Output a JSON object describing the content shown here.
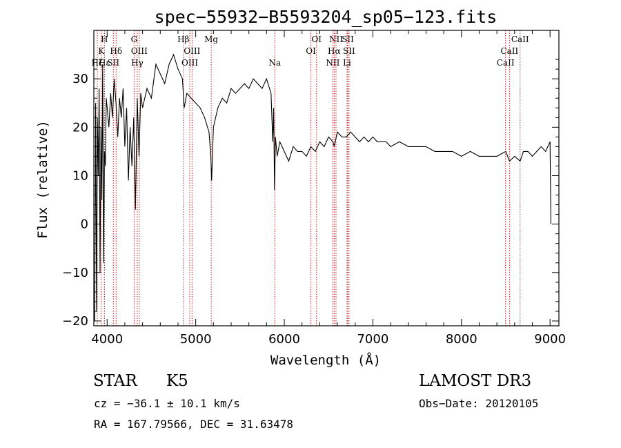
{
  "chart_data": {
    "type": "line",
    "title": "spec−55932−B5593204_sp05−123.fits",
    "xlabel": "Wavelength (Å)",
    "ylabel": "Flux (relative)",
    "xlim": [
      3850,
      9100
    ],
    "ylim": [
      -21,
      40
    ],
    "xticks": [
      4000,
      5000,
      6000,
      7000,
      8000,
      9000
    ],
    "xtick_labels": [
      "4000",
      "5000",
      "6000",
      "7000",
      "8000",
      "9000"
    ],
    "yticks": [
      -20,
      -10,
      0,
      10,
      20,
      30
    ],
    "ytick_labels": [
      "−20",
      "−10",
      "0",
      "10",
      "20",
      "30"
    ],
    "series": [
      {
        "name": "flux",
        "x": [
          3860,
          3870,
          3880,
          3890,
          3900,
          3910,
          3920,
          3930,
          3940,
          3950,
          3960,
          3970,
          3980,
          3990,
          4000,
          4020,
          4040,
          4060,
          4080,
          4100,
          4120,
          4140,
          4160,
          4180,
          4200,
          4220,
          4240,
          4260,
          4280,
          4300,
          4320,
          4340,
          4360,
          4380,
          4400,
          4450,
          4500,
          4550,
          4600,
          4650,
          4700,
          4750,
          4800,
          4850,
          4870,
          4900,
          4950,
          5000,
          5050,
          5100,
          5150,
          5170,
          5180,
          5200,
          5250,
          5300,
          5350,
          5400,
          5450,
          5500,
          5550,
          5600,
          5650,
          5700,
          5750,
          5800,
          5850,
          5870,
          5880,
          5890,
          5900,
          5920,
          5950,
          6000,
          6050,
          6100,
          6150,
          6200,
          6250,
          6300,
          6350,
          6400,
          6450,
          6500,
          6550,
          6563,
          6600,
          6650,
          6700,
          6750,
          6800,
          6850,
          6900,
          6950,
          7000,
          7050,
          7100,
          7150,
          7200,
          7300,
          7400,
          7500,
          7600,
          7700,
          7800,
          7900,
          8000,
          8100,
          8200,
          8300,
          8400,
          8500,
          8542,
          8600,
          8662,
          8700,
          8750,
          8800,
          8850,
          8900,
          8950,
          9000,
          9010
        ],
        "y": [
          -20,
          25,
          -18,
          22,
          10,
          28,
          -10,
          20,
          5,
          33,
          -8,
          15,
          12,
          26,
          24,
          20,
          27,
          22,
          30,
          25,
          18,
          26,
          22,
          28,
          16,
          24,
          9,
          20,
          12,
          22,
          3,
          26,
          14,
          27,
          24,
          28,
          26,
          33,
          31,
          29,
          33,
          35,
          32,
          30,
          24,
          27,
          26,
          25,
          24,
          22,
          19,
          14,
          9,
          20,
          24,
          26,
          25,
          28,
          27,
          28,
          29,
          28,
          30,
          29,
          28,
          30,
          27,
          17,
          24,
          7,
          18,
          14,
          17,
          15,
          13,
          16,
          15,
          15,
          14,
          16,
          15,
          17,
          16,
          18,
          17,
          16,
          19,
          18,
          18,
          19,
          18,
          17,
          18,
          17,
          18,
          17,
          17,
          17,
          16,
          17,
          16,
          16,
          16,
          15,
          15,
          15,
          14,
          15,
          14,
          14,
          14,
          15,
          13,
          14,
          13,
          15,
          15,
          14,
          15,
          16,
          15,
          17,
          0
        ]
      }
    ],
    "line_markers": [
      {
        "wl": 3934,
        "label": "K",
        "row": 2
      },
      {
        "wl": 3969,
        "label": "H",
        "row": 1
      },
      {
        "wl": 3889,
        "label": "Hζ",
        "row": 3
      },
      {
        "wl": 3970,
        "label": "Hε",
        "row": 3
      },
      {
        "wl": 4101,
        "label": "Hδ",
        "row": 2
      },
      {
        "wl": 4070,
        "label": "SII",
        "row": 3
      },
      {
        "wl": 4305,
        "label": "G",
        "row": 1
      },
      {
        "wl": 4363,
        "label": "OIII",
        "row": 2
      },
      {
        "wl": 4340,
        "label": "Hγ",
        "row": 3
      },
      {
        "wl": 4861,
        "label": "Hβ",
        "row": 1
      },
      {
        "wl": 4959,
        "label": "OIII",
        "row": 2
      },
      {
        "wl": 4933,
        "label": "OIII",
        "row": 3
      },
      {
        "wl": 5175,
        "label": "Mg",
        "row": 1
      },
      {
        "wl": 5893,
        "label": "Na",
        "row": 3
      },
      {
        "wl": 6364,
        "label": "OI",
        "row": 1
      },
      {
        "wl": 6300,
        "label": "OI",
        "row": 2
      },
      {
        "wl": 6584,
        "label": "NII",
        "row": 1
      },
      {
        "wl": 6563,
        "label": "Hα",
        "row": 2
      },
      {
        "wl": 6548,
        "label": "NII",
        "row": 3
      },
      {
        "wl": 6717,
        "label": "SII",
        "row": 1
      },
      {
        "wl": 6731,
        "label": "SII",
        "row": 2
      },
      {
        "wl": 6708,
        "label": "Li",
        "row": 3
      },
      {
        "wl": 8662,
        "label": "CaII",
        "row": 1
      },
      {
        "wl": 8542,
        "label": "CaII",
        "row": 2
      },
      {
        "wl": 8498,
        "label": "CaII",
        "row": 3
      }
    ]
  },
  "info": {
    "object_class": "STAR",
    "subclass": "K5",
    "survey": "LAMOST DR3",
    "cz": "cz = −36.1 ± 10.1 km/s",
    "obs_date": "Obs−Date: 20120105",
    "radec": "RA = 167.79566, DEC =  31.63478"
  },
  "colors": {
    "spectrum": "#000000",
    "marker": "#b22222"
  }
}
